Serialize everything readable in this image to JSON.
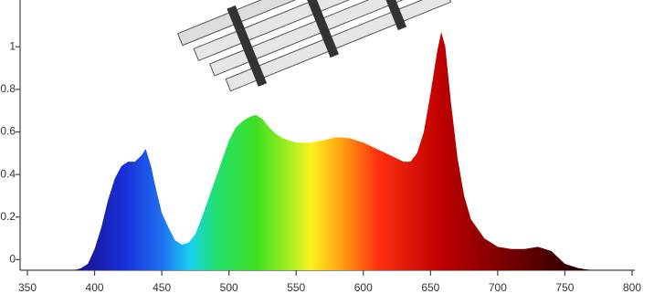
{
  "chart_data": {
    "type": "area",
    "x": [
      385,
      390,
      395,
      400,
      405,
      410,
      415,
      420,
      425,
      430,
      435,
      438,
      442,
      445,
      450,
      455,
      460,
      465,
      470,
      475,
      480,
      485,
      490,
      495,
      500,
      505,
      510,
      515,
      520,
      525,
      530,
      535,
      540,
      545,
      550,
      560,
      570,
      580,
      590,
      600,
      610,
      620,
      630,
      635,
      640,
      645,
      650,
      655,
      658,
      661,
      665,
      670,
      675,
      680,
      690,
      700,
      710,
      720,
      730,
      740,
      750,
      760,
      770
    ],
    "values": [
      -0.05,
      -0.04,
      -0.02,
      0.05,
      0.15,
      0.28,
      0.38,
      0.44,
      0.46,
      0.46,
      0.49,
      0.52,
      0.44,
      0.35,
      0.22,
      0.15,
      0.09,
      0.07,
      0.08,
      0.12,
      0.2,
      0.29,
      0.38,
      0.47,
      0.56,
      0.62,
      0.65,
      0.67,
      0.68,
      0.66,
      0.62,
      0.59,
      0.57,
      0.56,
      0.55,
      0.55,
      0.56,
      0.575,
      0.57,
      0.55,
      0.52,
      0.49,
      0.46,
      0.46,
      0.5,
      0.6,
      0.78,
      0.98,
      1.07,
      1.0,
      0.75,
      0.48,
      0.3,
      0.19,
      0.1,
      0.06,
      0.05,
      0.05,
      0.06,
      0.04,
      -0.02,
      -0.04,
      -0.05
    ],
    "xlim": [
      350,
      800
    ],
    "xticks": [
      350,
      400,
      450,
      500,
      550,
      600,
      650,
      700,
      750,
      800
    ],
    "ylim": [
      -0.05,
      1.22
    ],
    "yticks": [
      0,
      0.2,
      0.4,
      0.6,
      0.8,
      1
    ]
  }
}
